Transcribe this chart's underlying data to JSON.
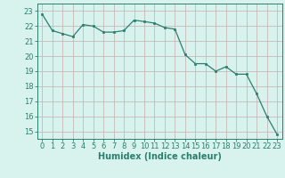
{
  "x": [
    0,
    1,
    2,
    3,
    4,
    5,
    6,
    7,
    8,
    9,
    10,
    11,
    12,
    13,
    14,
    15,
    16,
    17,
    18,
    19,
    20,
    21,
    22,
    23
  ],
  "y": [
    22.8,
    21.7,
    21.5,
    21.3,
    22.1,
    22.0,
    21.6,
    21.6,
    21.7,
    22.4,
    22.3,
    22.2,
    21.9,
    21.8,
    20.1,
    19.5,
    19.5,
    19.0,
    19.3,
    18.8,
    18.8,
    17.5,
    16.0,
    14.8
  ],
  "line_color": "#2a7f6f",
  "marker": "s",
  "marker_size": 2.0,
  "bg_color": "#d8f2ee",
  "grid_color": "#c8b8b8",
  "axis_color": "#2a7f6f",
  "tick_color": "#2a7f6f",
  "xlabel": "Humidex (Indice chaleur)",
  "xlim": [
    -0.5,
    23.5
  ],
  "ylim": [
    14.5,
    23.5
  ],
  "yticks": [
    15,
    16,
    17,
    18,
    19,
    20,
    21,
    22,
    23
  ],
  "xticks": [
    0,
    1,
    2,
    3,
    4,
    5,
    6,
    7,
    8,
    9,
    10,
    11,
    12,
    13,
    14,
    15,
    16,
    17,
    18,
    19,
    20,
    21,
    22,
    23
  ],
  "label_fontsize": 7.0,
  "tick_fontsize": 6.0
}
